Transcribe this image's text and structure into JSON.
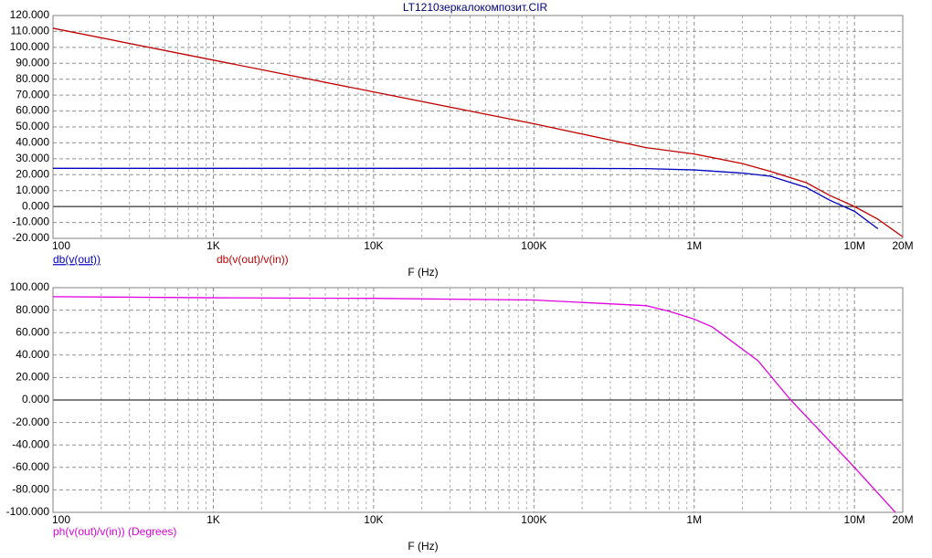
{
  "chart_data": [
    {
      "type": "line",
      "title": "LT1210зеркалокомпозит.CIR",
      "xlabel": "F (Hz)",
      "log_x": true,
      "grid": true,
      "x": [
        100,
        1000,
        10000,
        100000,
        500000,
        1000000,
        2000000,
        3000000,
        5000000,
        7000000,
        10000000,
        14000000,
        20000000
      ],
      "series": [
        {
          "name": "db(v(out))",
          "color": "#0000c0",
          "values": [
            24,
            24,
            24,
            24,
            23.8,
            23,
            21,
            19,
            12,
            4,
            -3,
            -14,
            null
          ]
        },
        {
          "name": "db(v(out)/v(in))",
          "color": "#c00000",
          "values": [
            112,
            92,
            72,
            52,
            37,
            33,
            27,
            22,
            15,
            7,
            0,
            -8,
            -19
          ]
        }
      ],
      "xlim": [
        100,
        20000000
      ],
      "xticks": [
        {
          "value": 100,
          "label": "100"
        },
        {
          "value": 1000,
          "label": "1K"
        },
        {
          "value": 10000,
          "label": "10K"
        },
        {
          "value": 100000,
          "label": "100K"
        },
        {
          "value": 1000000,
          "label": "1M"
        },
        {
          "value": 10000000,
          "label": "10M"
        },
        {
          "value": 20000000,
          "label": "20M"
        }
      ],
      "ylim": [
        -20,
        120
      ],
      "yticks": [
        {
          "value": 120,
          "label": "120.000"
        },
        {
          "value": 110,
          "label": "110.000"
        },
        {
          "value": 100,
          "label": "100.000"
        },
        {
          "value": 90,
          "label": "90.000"
        },
        {
          "value": 80,
          "label": "80.000"
        },
        {
          "value": 70,
          "label": "70.000"
        },
        {
          "value": 60,
          "label": "60.000"
        },
        {
          "value": 50,
          "label": "50.000"
        },
        {
          "value": 40,
          "label": "40.000"
        },
        {
          "value": 30,
          "label": "30.000"
        },
        {
          "value": 20,
          "label": "20.000"
        },
        {
          "value": 10,
          "label": "10.000"
        },
        {
          "value": 0,
          "label": "0.000"
        },
        {
          "value": -10,
          "label": "-10.000"
        },
        {
          "value": -20,
          "label": "-20.000"
        }
      ]
    },
    {
      "type": "line",
      "xlabel": "F (Hz)",
      "log_x": true,
      "grid": true,
      "x": [
        100,
        1000,
        10000,
        100000,
        500000,
        700000,
        1000000,
        1300000,
        2500000,
        4000000,
        10000000,
        18000000
      ],
      "series": [
        {
          "name": "ph(v(out)/v(in)) (Degrees)",
          "color": "#e000e0",
          "values": [
            92,
            91,
            90.5,
            89,
            84,
            79,
            72,
            65,
            35,
            0,
            -60,
            -100
          ]
        }
      ],
      "xlim": [
        100,
        20000000
      ],
      "xticks": [
        {
          "value": 100,
          "label": "100"
        },
        {
          "value": 1000,
          "label": "1K"
        },
        {
          "value": 10000,
          "label": "10K"
        },
        {
          "value": 100000,
          "label": "100K"
        },
        {
          "value": 1000000,
          "label": "1M"
        },
        {
          "value": 10000000,
          "label": "10M"
        },
        {
          "value": 20000000,
          "label": "20M"
        }
      ],
      "ylim": [
        -100,
        100
      ],
      "yticks": [
        {
          "value": 100,
          "label": "100.000"
        },
        {
          "value": 80,
          "label": "80.000"
        },
        {
          "value": 60,
          "label": "60.000"
        },
        {
          "value": 40,
          "label": "40.000"
        },
        {
          "value": 20,
          "label": "20.000"
        },
        {
          "value": 0,
          "label": "0.000"
        },
        {
          "value": -20,
          "label": "-20.000"
        },
        {
          "value": -40,
          "label": "-40.000"
        },
        {
          "value": -60,
          "label": "-60.000"
        },
        {
          "value": -80,
          "label": "-80.000"
        },
        {
          "value": -100,
          "label": "-100.000"
        }
      ]
    }
  ]
}
